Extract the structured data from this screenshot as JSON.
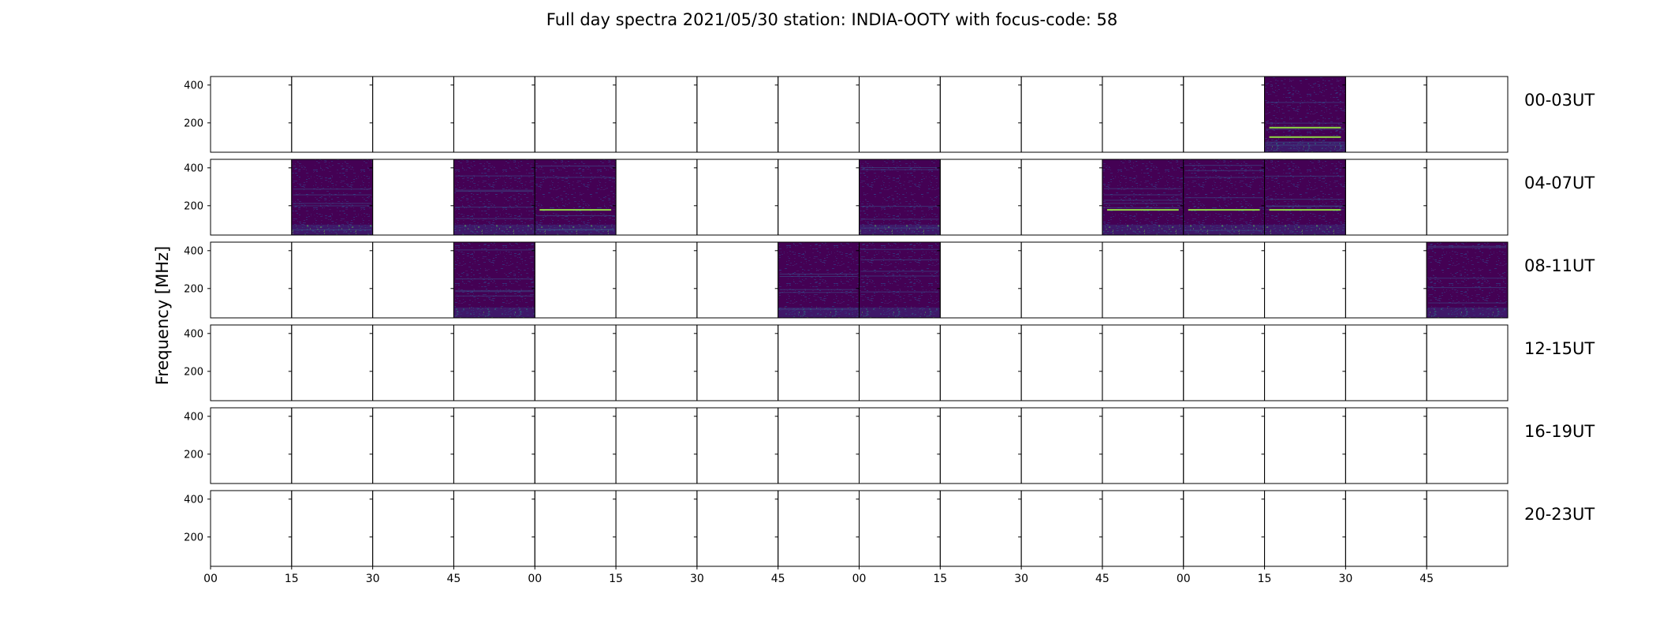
{
  "figure": {
    "title": "Full day spectra 2021/05/30 station: INDIA-OOTY with focus-code: 58",
    "ylabel": "Frequency [MHz]",
    "background": "#ffffff"
  },
  "chart_data": {
    "type": "heatmap",
    "title": "Full day spectra 2021/05/30 station: INDIA-OOTY with focus-code: 58",
    "ylabel": "Frequency [MHz]",
    "ylim": [
      45,
      445
    ],
    "ytick_values": [
      200,
      400
    ],
    "ytick_labels": [
      "200",
      "400"
    ],
    "xtick_labels": [
      "00",
      "15",
      "30",
      "45",
      "00",
      "15",
      "30",
      "45",
      "00",
      "15",
      "30",
      "45",
      "00",
      "15",
      "30",
      "45"
    ],
    "columns_per_row": 16,
    "minutes_per_column": 15,
    "colormap": "viridis",
    "colors": {
      "low": "#440154",
      "mid": "#21918c",
      "high": "#fde725",
      "bar": "#8fd744"
    },
    "rows": [
      {
        "label": "00-03UT",
        "panels_with_data": [
          13
        ]
      },
      {
        "label": "04-07UT",
        "panels_with_data": [
          1,
          3,
          4,
          8,
          11,
          12,
          13
        ]
      },
      {
        "label": "08-11UT",
        "panels_with_data": [
          3,
          7,
          8,
          15
        ]
      },
      {
        "label": "12-15UT",
        "panels_with_data": []
      },
      {
        "label": "16-19UT",
        "panels_with_data": []
      },
      {
        "label": "20-23UT",
        "panels_with_data": []
      }
    ],
    "rfi_lines_mhz": [
      {
        "row": 0,
        "panel": 13,
        "freq": 175
      },
      {
        "row": 0,
        "panel": 13,
        "freq": 125
      },
      {
        "row": 1,
        "panel": 4,
        "freq": 178
      },
      {
        "row": 1,
        "panel": 11,
        "freq": 178
      },
      {
        "row": 1,
        "panel": 12,
        "freq": 178
      },
      {
        "row": 1,
        "panel": 13,
        "freq": 178
      }
    ]
  }
}
